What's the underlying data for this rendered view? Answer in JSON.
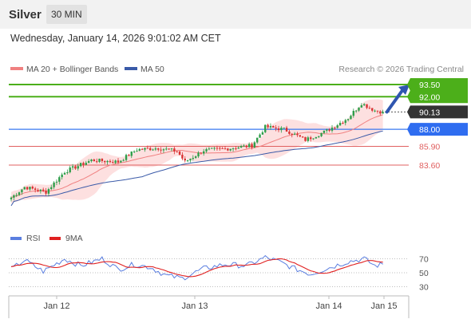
{
  "header": {
    "instrument": "Silver",
    "timeframe": "30 MIN"
  },
  "datetime": "Wednesday, January 14, 2026 9:01:02 AM CET",
  "credit": "Research © 2026 Trading Central",
  "colors": {
    "candle_up": "#2e9e4a",
    "candle_down": "#d93232",
    "ma20": "#f08080",
    "band_fill": "#fde0e0",
    "ma50": "#3a5aa8",
    "target_line": "#4caf1a",
    "current_line": "#555555",
    "pivot_line": "#3a78f0",
    "support_line": "#e06060",
    "rsi": "#5a7ee0",
    "rsi_ma": "#e02020"
  },
  "chart_data": [
    {
      "type": "candlestick",
      "legend": [
        "MA 20 + Bollinger Bands",
        "MA 50"
      ],
      "x_ticks": [
        "Jan 12",
        "Jan 13",
        "Jan 14",
        "Jan 15"
      ],
      "levels": [
        {
          "value": 93.5,
          "label": "93.50",
          "role": "target"
        },
        {
          "value": 92.0,
          "label": "92.00",
          "role": "target"
        },
        {
          "value": 90.13,
          "label": "90.13",
          "role": "current"
        },
        {
          "value": 88.0,
          "label": "88.00",
          "role": "pivot"
        },
        {
          "value": 85.9,
          "label": "85.90",
          "role": "support"
        },
        {
          "value": 83.6,
          "label": "83.60",
          "role": "support"
        }
      ],
      "price_path_keypoints": [
        {
          "i": 0,
          "close": 79.6
        },
        {
          "i": 5,
          "close": 80.9
        },
        {
          "i": 13,
          "close": 80.3
        },
        {
          "i": 20,
          "close": 82.8
        },
        {
          "i": 30,
          "close": 84.2
        },
        {
          "i": 40,
          "close": 84.0
        },
        {
          "i": 47,
          "close": 85.5
        },
        {
          "i": 55,
          "close": 85.7
        },
        {
          "i": 62,
          "close": 85.3
        },
        {
          "i": 65,
          "close": 84.0
        },
        {
          "i": 72,
          "close": 85.4
        },
        {
          "i": 80,
          "close": 85.6
        },
        {
          "i": 90,
          "close": 86.0
        },
        {
          "i": 95,
          "close": 88.3
        },
        {
          "i": 102,
          "close": 88.0
        },
        {
          "i": 110,
          "close": 86.7
        },
        {
          "i": 118,
          "close": 87.8
        },
        {
          "i": 126,
          "close": 89.4
        },
        {
          "i": 131,
          "close": 91.2
        },
        {
          "i": 136,
          "close": 90.3
        },
        {
          "i": 139,
          "close": 90.13
        }
      ],
      "projection": {
        "direction": "up",
        "target": 93.5
      }
    },
    {
      "type": "line",
      "legend": [
        "RSI",
        "9MA"
      ],
      "y_ticks": [
        70,
        50,
        30
      ],
      "rsi_keypoints": [
        {
          "i": 0,
          "v": 55
        },
        {
          "i": 5,
          "v": 68
        },
        {
          "i": 12,
          "v": 52
        },
        {
          "i": 20,
          "v": 70
        },
        {
          "i": 26,
          "v": 60
        },
        {
          "i": 34,
          "v": 70
        },
        {
          "i": 40,
          "v": 55
        },
        {
          "i": 46,
          "v": 62
        },
        {
          "i": 52,
          "v": 58
        },
        {
          "i": 58,
          "v": 46
        },
        {
          "i": 64,
          "v": 42
        },
        {
          "i": 72,
          "v": 56
        },
        {
          "i": 80,
          "v": 62
        },
        {
          "i": 88,
          "v": 60
        },
        {
          "i": 95,
          "v": 72
        },
        {
          "i": 100,
          "v": 66
        },
        {
          "i": 106,
          "v": 56
        },
        {
          "i": 112,
          "v": 48
        },
        {
          "i": 118,
          "v": 56
        },
        {
          "i": 126,
          "v": 66
        },
        {
          "i": 132,
          "v": 70
        },
        {
          "i": 136,
          "v": 60
        },
        {
          "i": 139,
          "v": 62
        }
      ]
    }
  ]
}
